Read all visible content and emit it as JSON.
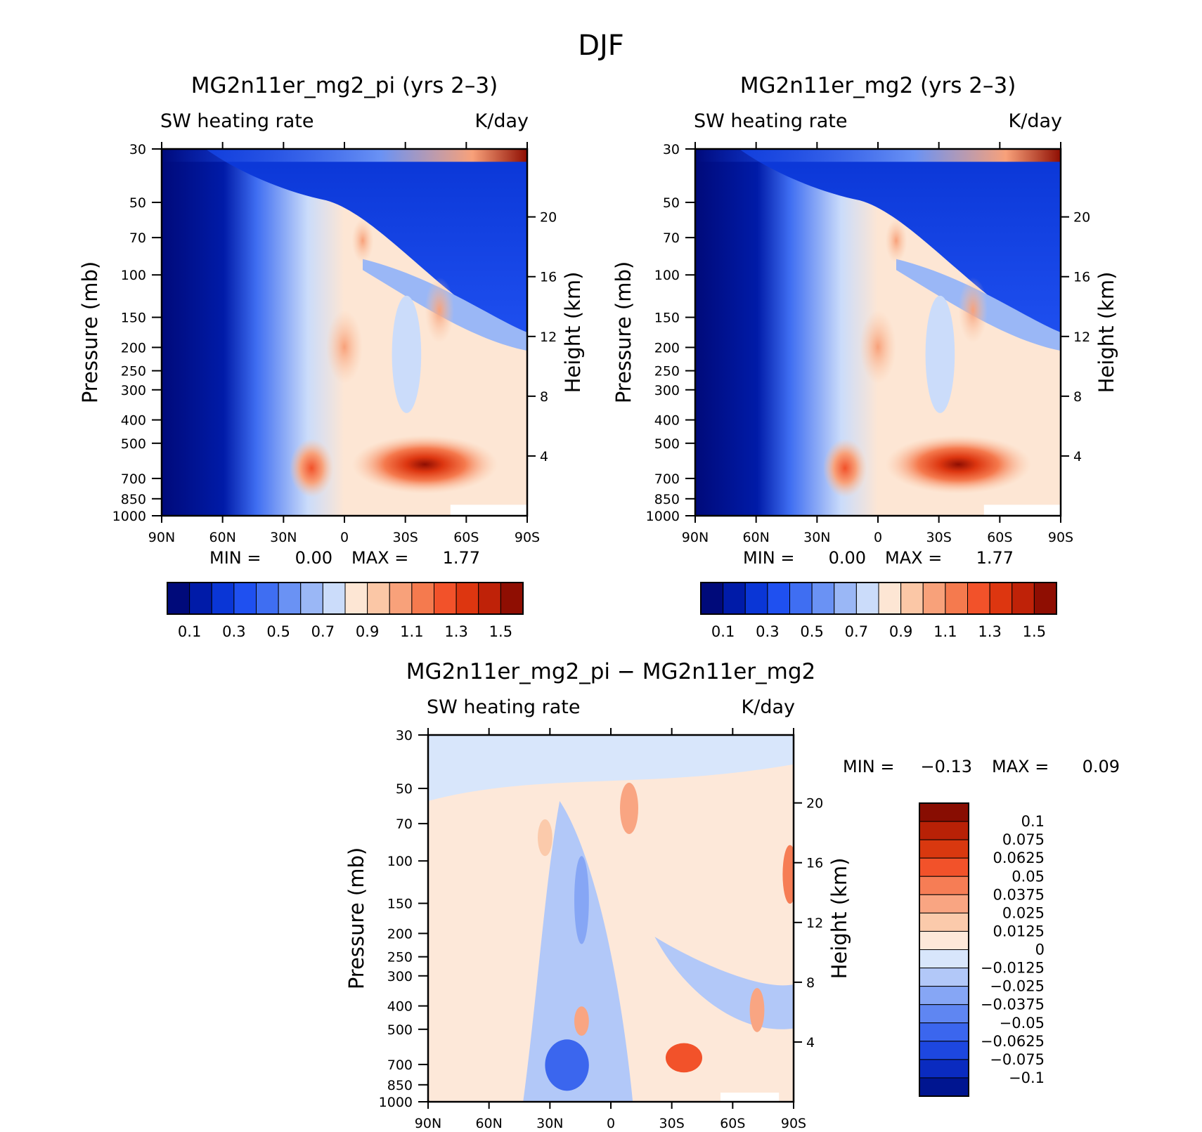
{
  "figure_title": "DJF",
  "colors": {
    "abs_levels": [
      "#000a7a",
      "#001ba8",
      "#0a36d6",
      "#1f50f0",
      "#3f6ef2",
      "#6a92f4",
      "#9ab7f6",
      "#cbdcfa",
      "#fde6d4",
      "#fbc7a6",
      "#f8a17a",
      "#f57a4e",
      "#f2522a",
      "#dd3610",
      "#bf2208",
      "#8f0e02"
    ],
    "diff_levels": [
      "#001590",
      "#0a2bc0",
      "#1d47e0",
      "#3b66ee",
      "#5f86f2",
      "#86a6f5",
      "#b2c8f8",
      "#d8e6fb",
      "#fde8d9",
      "#fbcaab",
      "#f9a582",
      "#f67d55",
      "#f2522a",
      "#d9380f",
      "#b82106",
      "#880d02"
    ]
  },
  "chart_data": [
    {
      "id": "left",
      "type": "heatmap",
      "title": "MG2n11er_mg2_pi (yrs 2–3)",
      "subtitle_left": "SW heating rate",
      "subtitle_right": "K/day",
      "ylabel": "Pressure (mb)",
      "ylabel_right": "Height (km)",
      "x_ticks": [
        "90N",
        "60N",
        "30N",
        "0",
        "30S",
        "60S",
        "90S"
      ],
      "y_ticks": [
        "30",
        "50",
        "70",
        "100",
        "150",
        "200",
        "250",
        "300",
        "400",
        "500",
        "700",
        "850",
        "1000"
      ],
      "y_ticks_right": [
        "20",
        "16",
        "12",
        "8",
        "4"
      ],
      "min_label": "MIN =",
      "min_value": "0.00",
      "max_label": "MAX =",
      "max_value": "1.77",
      "colorbar_labels": [
        "0.1",
        "0.3",
        "0.5",
        "0.7",
        "0.9",
        "1.1",
        "1.3",
        "1.5"
      ]
    },
    {
      "id": "right",
      "type": "heatmap",
      "title": "MG2n11er_mg2 (yrs 2–3)",
      "subtitle_left": "SW heating rate",
      "subtitle_right": "K/day",
      "ylabel": "Pressure (mb)",
      "ylabel_right": "Height (km)",
      "x_ticks": [
        "90N",
        "60N",
        "30N",
        "0",
        "30S",
        "60S",
        "90S"
      ],
      "y_ticks": [
        "30",
        "50",
        "70",
        "100",
        "150",
        "200",
        "250",
        "300",
        "400",
        "500",
        "700",
        "850",
        "1000"
      ],
      "y_ticks_right": [
        "20",
        "16",
        "12",
        "8",
        "4"
      ],
      "min_label": "MIN =",
      "min_value": "0.00",
      "max_label": "MAX =",
      "max_value": "1.77",
      "colorbar_labels": [
        "0.1",
        "0.3",
        "0.5",
        "0.7",
        "0.9",
        "1.1",
        "1.3",
        "1.5"
      ]
    },
    {
      "id": "diff",
      "type": "heatmap",
      "title": "MG2n11er_mg2_pi − MG2n11er_mg2",
      "subtitle_left": "SW heating rate",
      "subtitle_right": "K/day",
      "ylabel": "Pressure (mb)",
      "ylabel_right": "Height (km)",
      "x_ticks": [
        "90N",
        "60N",
        "30N",
        "0",
        "30S",
        "60S",
        "90S"
      ],
      "y_ticks": [
        "30",
        "50",
        "70",
        "100",
        "150",
        "200",
        "250",
        "300",
        "400",
        "500",
        "700",
        "850",
        "1000"
      ],
      "y_ticks_right": [
        "20",
        "16",
        "12",
        "8",
        "4"
      ],
      "min_label": "MIN =",
      "min_value": "−0.13",
      "max_label": "MAX =",
      "max_value": "0.09",
      "colorbar_labels": [
        "0.1",
        "0.075",
        "0.0625",
        "0.05",
        "0.0375",
        "0.025",
        "0.0125",
        "0",
        "−0.0125",
        "−0.025",
        "−0.0375",
        "−0.05",
        "−0.0625",
        "−0.075",
        "−0.1"
      ]
    }
  ]
}
